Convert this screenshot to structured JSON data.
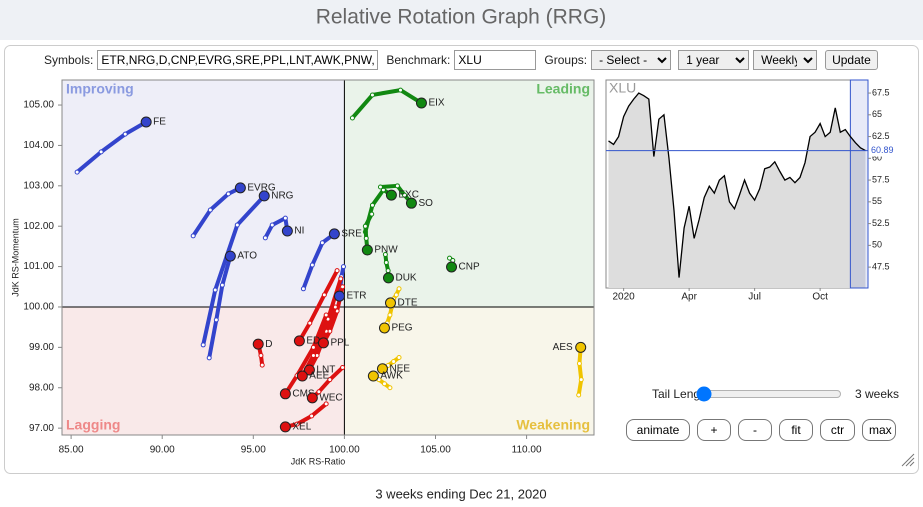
{
  "header": {
    "title": "Relative Rotation Graph (RRG)"
  },
  "form": {
    "symbols_label": "Symbols:",
    "symbols": "ETR,NRG,D,CNP,EVRG,SRE,PPL,LNT,AWK,PNW,",
    "benchmark_label": "Benchmark:",
    "benchmark": "XLU",
    "groups_label": "Groups:",
    "groups": "- Select -",
    "period": "1 year",
    "frequency": "Weekly",
    "update": "Update"
  },
  "chart_data": [
    {
      "type": "scatter",
      "x_label": "JdK RS-Ratio",
      "y_label": "JdK RS-Momentum",
      "quadrants": {
        "improving": "Improving",
        "leading": "Leading",
        "lagging": "Lagging",
        "weakening": "Weakening"
      },
      "xlim": [
        84.5,
        113.7
      ],
      "ylim": [
        96.83,
        105.62
      ],
      "xticks": [
        {
          "value": 85,
          "label": "85.00"
        },
        {
          "value": 90,
          "label": "90.00"
        },
        {
          "value": 95,
          "label": "95.00"
        },
        {
          "value": 100,
          "label": "100.00"
        },
        {
          "value": 105,
          "label": "105.00"
        },
        {
          "value": 110,
          "label": "110.00"
        }
      ],
      "yticks": [
        {
          "value": 97,
          "label": "97.00"
        },
        {
          "value": 98,
          "label": "98.00"
        },
        {
          "value": 99,
          "label": "99.00"
        },
        {
          "value": 100,
          "label": "100.00"
        },
        {
          "value": 101,
          "label": "101.00"
        },
        {
          "value": 102,
          "label": "102.00"
        },
        {
          "value": 103,
          "label": "103.00"
        },
        {
          "value": 104,
          "label": "104.00"
        },
        {
          "value": 105,
          "label": "105.00"
        }
      ],
      "series": [
        {
          "name": "FE",
          "color": "#3344cc",
          "x": [
            85.33,
            86.65,
            87.97,
            89.12
          ],
          "values": [
            103.34,
            103.84,
            104.28,
            104.58
          ]
        },
        {
          "name": "EVRG",
          "color": "#3344cc",
          "x": [
            91.7,
            92.64,
            93.63,
            94.29
          ],
          "values": [
            101.76,
            102.4,
            102.8,
            102.95
          ]
        },
        {
          "name": "NRG",
          "color": "#3344cc",
          "x": [
            92.25,
            92.91,
            94.12,
            95.6
          ],
          "values": [
            99.06,
            100.42,
            102.03,
            102.75
          ]
        },
        {
          "name": "NI",
          "color": "#3344cc",
          "x": [
            95.66,
            96.04,
            96.76,
            96.87
          ],
          "values": [
            101.71,
            102.03,
            102.2,
            101.88
          ]
        },
        {
          "name": "SRE",
          "color": "#3344cc",
          "x": [
            97.75,
            98.24,
            98.79,
            99.45
          ],
          "values": [
            100.45,
            101.04,
            101.59,
            101.81
          ]
        },
        {
          "name": "ATO",
          "color": "#3344cc",
          "x": [
            92.58,
            92.97,
            93.3,
            93.74
          ],
          "values": [
            98.74,
            99.68,
            100.54,
            101.26
          ]
        },
        {
          "name": "ETR",
          "color": "#3344cc",
          "x": [
            99.95,
            99.84,
            99.78,
            99.73
          ],
          "values": [
            101.0,
            100.75,
            100.5,
            100.27
          ]
        },
        {
          "name": "D",
          "color": "#dd1111",
          "x": [
            95.49,
            95.42,
            95.32,
            95.27
          ],
          "values": [
            98.56,
            98.8,
            99.0,
            99.08
          ]
        },
        {
          "name": "ED",
          "color": "#dd1111",
          "x": [
            99.6,
            98.9,
            98.1,
            97.53
          ],
          "values": [
            100.9,
            100.3,
            99.6,
            99.16
          ]
        },
        {
          "name": "PPL",
          "color": "#dd1111",
          "x": [
            99.9,
            99.6,
            99.2,
            98.85
          ],
          "values": [
            100.5,
            99.9,
            99.4,
            99.11
          ]
        },
        {
          "name": "LNT",
          "color": "#dd1111",
          "x": [
            99.5,
            99.0,
            98.5,
            98.08
          ],
          "values": [
            100.0,
            99.4,
            98.8,
            98.44
          ]
        },
        {
          "name": "AEE",
          "color": "#dd1111",
          "x": [
            99.8,
            99.1,
            98.3,
            97.69
          ],
          "values": [
            100.7,
            99.7,
            98.8,
            98.29
          ]
        },
        {
          "name": "CMS",
          "color": "#dd1111",
          "x": [
            99.0,
            98.3,
            97.4,
            96.76
          ],
          "values": [
            99.8,
            99.0,
            98.3,
            97.85
          ]
        },
        {
          "name": "WEC",
          "color": "#dd1111",
          "x": [
            99.9,
            99.2,
            98.6,
            98.24
          ],
          "values": [
            98.5,
            98.2,
            97.9,
            97.75
          ]
        },
        {
          "name": "XEL",
          "color": "#dd1111",
          "x": [
            99.0,
            98.2,
            97.4,
            96.76
          ],
          "values": [
            97.6,
            97.3,
            97.1,
            97.03
          ]
        },
        {
          "name": "EIX",
          "color": "#118811",
          "x": [
            100.44,
            101.54,
            103.08,
            104.23
          ],
          "values": [
            104.68,
            105.25,
            105.37,
            105.05
          ]
        },
        {
          "name": "EXC",
          "color": "#118811",
          "x": [
            101.15,
            101.54,
            102.14,
            102.58
          ],
          "values": [
            101.86,
            102.52,
            102.9,
            102.77
          ]
        },
        {
          "name": "SO",
          "color": "#118811",
          "x": [
            101.98,
            102.91,
            103.3,
            103.68
          ],
          "values": [
            102.97,
            103.0,
            102.77,
            102.57
          ]
        },
        {
          "name": "PNW",
          "color": "#118811",
          "x": [
            101.5,
            101.15,
            101.2,
            101.26
          ],
          "values": [
            102.3,
            102.0,
            101.7,
            101.41
          ]
        },
        {
          "name": "DUK",
          "color": "#118811",
          "x": [
            102.25,
            102.3,
            102.4,
            102.42
          ],
          "values": [
            101.3,
            101.1,
            100.9,
            100.72
          ]
        },
        {
          "name": "CNP",
          "color": "#118811",
          "x": [
            105.77,
            105.95,
            105.92,
            105.88
          ],
          "values": [
            101.21,
            101.15,
            101.05,
            100.99
          ]
        },
        {
          "name": "AES",
          "color": "#f0c400",
          "x": [
            112.86,
            113.0,
            112.9,
            112.97
          ],
          "values": [
            97.82,
            98.2,
            98.6,
            99.0
          ]
        },
        {
          "name": "DTE",
          "color": "#f0c400",
          "x": [
            103.0,
            102.85,
            102.7,
            102.53
          ],
          "values": [
            100.45,
            100.3,
            100.2,
            100.1
          ]
        },
        {
          "name": "PEG",
          "color": "#f0c400",
          "x": [
            102.6,
            102.5,
            102.35,
            102.2
          ],
          "values": [
            100.0,
            99.8,
            99.6,
            99.48
          ]
        },
        {
          "name": "NEE",
          "color": "#f0c400",
          "x": [
            103.0,
            102.7,
            102.4,
            102.09
          ],
          "values": [
            98.75,
            98.65,
            98.55,
            98.47
          ]
        },
        {
          "name": "AWK",
          "color": "#f0c400",
          "x": [
            102.5,
            102.2,
            101.9,
            101.59
          ],
          "values": [
            98.0,
            98.1,
            98.2,
            98.29
          ]
        }
      ]
    },
    {
      "type": "line",
      "title": "XLU",
      "color": "#000000",
      "fill": "#dddddd",
      "current_color": "#3355cc",
      "categories": [
        null,
        null,
        null,
        "2020",
        null,
        null,
        null,
        null,
        null,
        null,
        null,
        null,
        null,
        null,
        null,
        null,
        "Apr",
        null,
        null,
        null,
        null,
        null,
        null,
        null,
        null,
        null,
        null,
        null,
        null,
        "Jul",
        null,
        null,
        null,
        null,
        null,
        null,
        null,
        null,
        null,
        null,
        null,
        null,
        "Oct",
        null,
        null,
        null,
        null,
        null,
        null,
        null,
        null,
        null
      ],
      "values": [
        62.0,
        61.6,
        62.5,
        64.8,
        66.0,
        66.8,
        67.5,
        67.2,
        66.8,
        60.2,
        64.5,
        65.0,
        60.0,
        54.0,
        46.3,
        52.0,
        54.5,
        50.8,
        53.0,
        55.5,
        56.8,
        56.0,
        57.5,
        58.0,
        55.0,
        54.2,
        55.8,
        57.5,
        56.0,
        55.2,
        56.5,
        58.8,
        59.0,
        59.6,
        58.5,
        57.5,
        57.8,
        57.2,
        57.8,
        59.5,
        62.5,
        63.0,
        64.0,
        62.5,
        63.0,
        65.8,
        63.0,
        63.3,
        62.5,
        61.8,
        61.2,
        60.89
      ],
      "ylim": [
        45.1,
        69.0
      ],
      "yticks": [
        47.5,
        50,
        52.5,
        55,
        57.5,
        60,
        62.5,
        65,
        67.5
      ]
    }
  ],
  "controls": {
    "tail_label": "Tail Length:",
    "tail_value": "3 weeks",
    "buttons": [
      "animate",
      "+",
      "-",
      "fit",
      "ctr",
      "max"
    ]
  },
  "footer": "3 weeks ending Dec 21, 2020"
}
